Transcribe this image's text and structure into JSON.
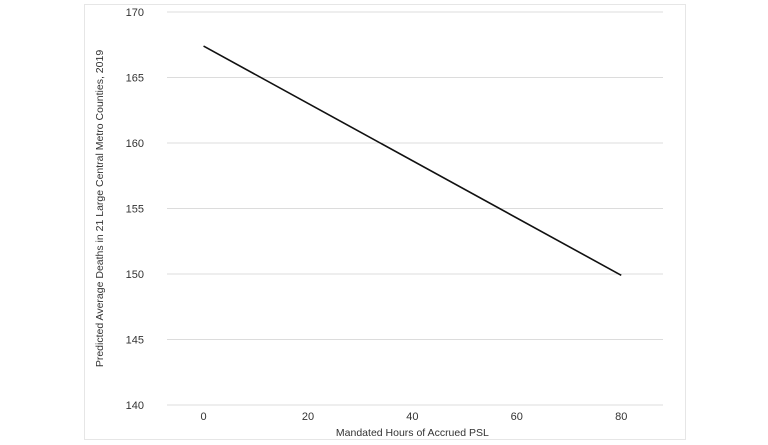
{
  "chart_data": {
    "type": "line",
    "title": "",
    "xlabel": "Mandated Hours of Accrued PSL",
    "ylabel": "Predicted Average Deaths in 21 Large Central Metro Counties, 2019",
    "x_ticks": [
      0,
      20,
      40,
      60,
      80
    ],
    "y_ticks": [
      140,
      145,
      150,
      155,
      160,
      165,
      170
    ],
    "xlim": [
      -7,
      88
    ],
    "ylim": [
      140,
      170
    ],
    "grid": "horizontal",
    "series": [
      {
        "x": [
          0,
          80
        ],
        "y": [
          167.4,
          149.9
        ],
        "color": "#111111"
      }
    ]
  }
}
